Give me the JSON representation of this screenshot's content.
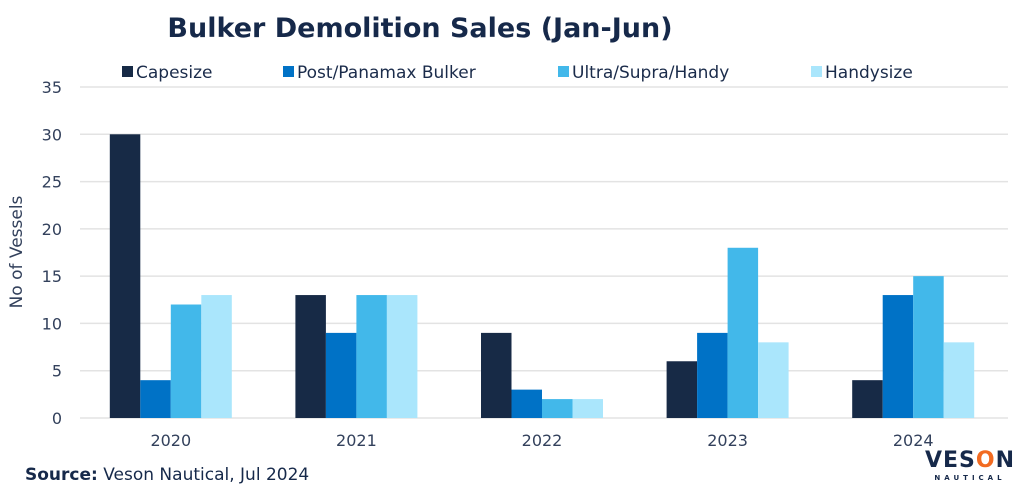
{
  "chart_data": {
    "type": "bar",
    "title": "Bulker Demolition Sales (Jan-Jun)",
    "xlabel": "",
    "ylabel": "No of Vessels",
    "categories": [
      "2020",
      "2021",
      "2022",
      "2023",
      "2024"
    ],
    "series": [
      {
        "name": "Capesize",
        "color": "#172a46",
        "values": [
          30,
          13,
          9,
          6,
          4
        ]
      },
      {
        "name": "Post/Panamax Bulker",
        "color": "#0072c6",
        "values": [
          4,
          9,
          3,
          9,
          13
        ]
      },
      {
        "name": "Ultra/Supra/Handy",
        "color": "#42b8ea",
        "values": [
          12,
          13,
          2,
          18,
          15
        ]
      },
      {
        "name": "Handysize",
        "color": "#aae6fc",
        "values": [
          13,
          13,
          2,
          8,
          8
        ]
      }
    ],
    "ylim": [
      0,
      35
    ],
    "yticks": [
      0,
      5,
      10,
      15,
      20,
      25,
      30,
      35
    ],
    "grid": true,
    "legend_position": "top"
  },
  "footer": {
    "source_label": "Source:",
    "source_text": " Veson Nautical, Jul 2024"
  },
  "logo": {
    "main_prefix": "VES",
    "main_o": "O",
    "main_suffix": "N",
    "sub": "NAUTICAL"
  }
}
